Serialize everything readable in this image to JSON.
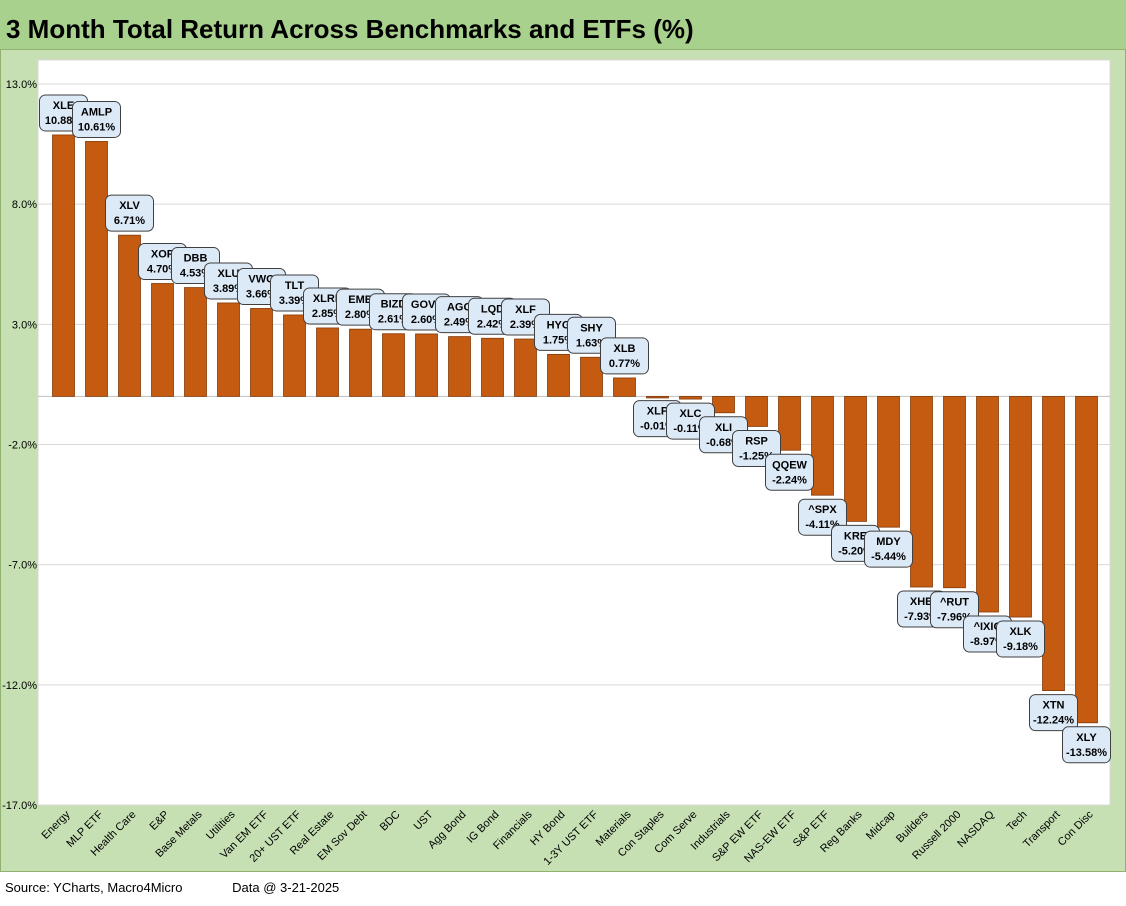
{
  "title": "3 Month Total Return Across Benchmarks and ETFs (%)",
  "footer": {
    "source": "Source: YCharts, Macro4Micro",
    "date": "Data @ 3-21-2025"
  },
  "colors": {
    "bar": "#c55a11",
    "frame": "#c6e0b4",
    "title_bar": "#a9d18e",
    "label_fill": "#dce9f7"
  },
  "chart_data": {
    "type": "bar",
    "title": "3 Month Total Return Across Benchmarks and ETFs (%)",
    "xlabel": "",
    "ylabel": "",
    "ylim": [
      -17.0,
      13.0
    ],
    "yticks": [
      13.0,
      8.0,
      3.0,
      -2.0,
      -7.0,
      -12.0,
      -17.0
    ],
    "ytick_labels": [
      "13.0%",
      "8.0%",
      "3.0%",
      "-2.0%",
      "-7.0%",
      "-12.0%",
      "-17.0%"
    ],
    "grid": true,
    "categories": [
      "Energy",
      "MLP ETF",
      "Health Care",
      "E&P",
      "Base Metals",
      "Utilities",
      "Van EM ETF",
      "20+ UST ETF",
      "Real Estate",
      "EM Sov Debt",
      "BDC",
      "UST",
      "Agg Bond",
      "IG Bond",
      "Financials",
      "HY Bond",
      "1-3Y UST ETF",
      "Materials",
      "Con Staples",
      "Com Serve",
      "Industrials",
      "S&P EW ETF",
      "NAS-EW ETF",
      "S&P ETF",
      "Reg Banks",
      "Midcap",
      "Builders",
      "Russell 2000",
      "NASDAQ",
      "Tech",
      "Transport",
      "Con Disc"
    ],
    "tickers": [
      "XLE",
      "AMLP",
      "XLV",
      "XOP",
      "DBB",
      "XLU",
      "VWO",
      "TLT",
      "XLRE",
      "EMB",
      "BIZD",
      "GOVT",
      "AGG",
      "LQD",
      "XLF",
      "HYG",
      "SHY",
      "XLB",
      "XLP",
      "XLC",
      "XLI",
      "RSP",
      "QQEW",
      "^SPX",
      "KRE",
      "MDY",
      "XHB",
      "^RUT",
      "^IXIC",
      "XLK",
      "XTN",
      "XLY"
    ],
    "values": [
      10.88,
      10.61,
      6.71,
      4.7,
      4.53,
      3.89,
      3.66,
      3.39,
      2.85,
      2.8,
      2.61,
      2.6,
      2.49,
      2.42,
      2.39,
      1.75,
      1.63,
      0.77,
      -0.01,
      -0.11,
      -0.68,
      -1.25,
      -2.24,
      -4.11,
      -5.2,
      -5.44,
      -7.93,
      -7.96,
      -8.97,
      -9.18,
      -12.24,
      -13.58
    ],
    "value_labels": [
      "10.88%",
      "10.61%",
      "6.71%",
      "4.70%",
      "4.53%",
      "3.89%",
      "3.66%",
      "3.39%",
      "2.85%",
      "2.80%",
      "2.61%",
      "2.60%",
      "2.49%",
      "2.42%",
      "2.39%",
      "1.75%",
      "1.63%",
      "0.77%",
      "-0.01%",
      "-0.11%",
      "-0.68%",
      "-1.25%",
      "-2.24%",
      "-4.11%",
      "-5.20%",
      "-5.44%",
      "-7.93%",
      "-7.96%",
      "-8.97%",
      "-9.18%",
      "-12.24%",
      "-13.58%"
    ]
  }
}
